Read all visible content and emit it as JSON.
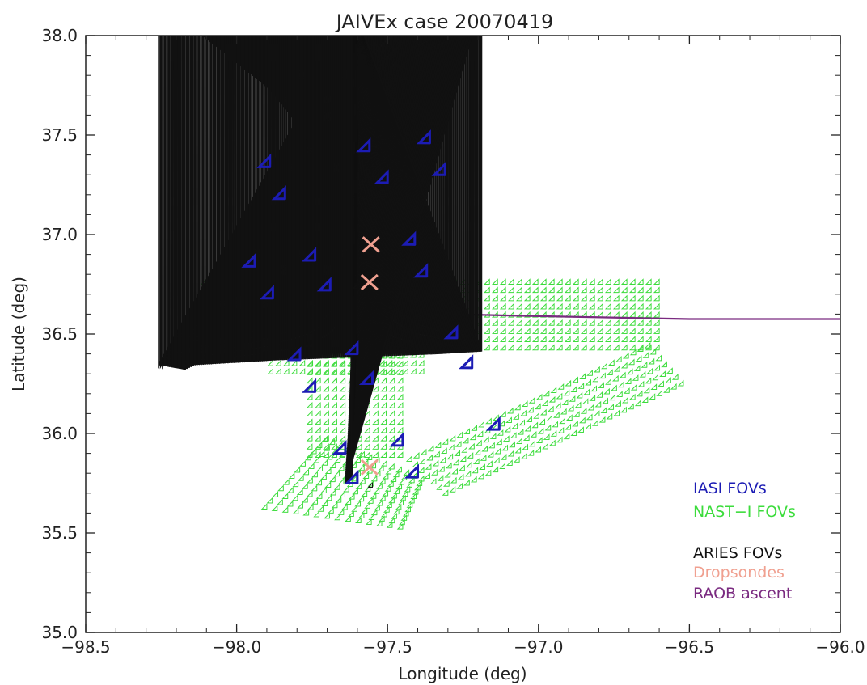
{
  "chart_data": {
    "type": "scatter",
    "title": "JAIVEx case 20070419",
    "xlabel": "Longitude (deg)",
    "ylabel": "Latitude (deg)",
    "xlim": [
      -98.5,
      -96.0
    ],
    "ylim": [
      35.0,
      38.0
    ],
    "x_ticks": [
      -98.5,
      -98.0,
      -97.5,
      -97.0,
      -96.5,
      -96.0
    ],
    "x_tick_labels": [
      "−98.5",
      "−98.0",
      "−97.5",
      "−97.0",
      "−96.5",
      "−96.0"
    ],
    "y_ticks": [
      35.0,
      35.5,
      36.0,
      36.5,
      37.0,
      37.5,
      38.0
    ],
    "y_tick_labels": [
      "35.0",
      "35.5",
      "36.0",
      "36.5",
      "37.0",
      "37.5",
      "38.0"
    ],
    "grid": false,
    "legend_position": "bottom-right",
    "legend": [
      {
        "label": "IASI FOVs",
        "color": "#1c1cb4"
      },
      {
        "label": "NAST−I FOVs",
        "color": "#3cdc3c"
      },
      {
        "label": "ARIES FOVs",
        "color": "#111111"
      },
      {
        "label": "Dropsondes",
        "color": "#f0a090"
      },
      {
        "label": "RAOB ascent",
        "color": "#7a2a80"
      }
    ],
    "series": [
      {
        "name": "IASI FOVs",
        "marker": "diamond",
        "color": "#1c1cb4",
        "points": [
          [
            -97.89,
            37.34
          ],
          [
            -97.84,
            37.18
          ],
          [
            -97.56,
            37.42
          ],
          [
            -97.5,
            37.26
          ],
          [
            -97.36,
            37.46
          ],
          [
            -97.31,
            37.3
          ],
          [
            -97.94,
            36.84
          ],
          [
            -97.88,
            36.68
          ],
          [
            -97.74,
            36.87
          ],
          [
            -97.69,
            36.72
          ],
          [
            -97.41,
            36.95
          ],
          [
            -97.37,
            36.79
          ],
          [
            -97.79,
            36.37
          ],
          [
            -97.74,
            36.21
          ],
          [
            -97.6,
            36.4
          ],
          [
            -97.55,
            36.25
          ],
          [
            -97.27,
            36.48
          ],
          [
            -97.22,
            36.33
          ],
          [
            -97.64,
            35.9
          ],
          [
            -97.6,
            35.75
          ],
          [
            -97.45,
            35.94
          ],
          [
            -97.4,
            35.78
          ],
          [
            -97.13,
            36.02
          ]
        ]
      },
      {
        "name": "NAST−I FOVs",
        "marker": "diamond",
        "color": "#3cdc3c",
        "swaths": [
          {
            "corners": [
              [
                -98.1,
                36.75
              ],
              [
                -96.6,
                36.75
              ],
              [
                -96.6,
                36.42
              ],
              [
                -98.1,
                36.42
              ]
            ]
          },
          {
            "corners": [
              [
                -97.88,
                37.0
              ],
              [
                -97.38,
                37.0
              ],
              [
                -97.38,
                36.3
              ],
              [
                -97.88,
                36.3
              ]
            ]
          },
          {
            "corners": [
              [
                -97.75,
                36.42
              ],
              [
                -97.45,
                36.42
              ],
              [
                -97.45,
                35.88
              ],
              [
                -97.75,
                35.88
              ]
            ]
          },
          {
            "corners": [
              [
                -97.7,
                35.96
              ],
              [
                -97.38,
                35.76
              ],
              [
                -97.45,
                35.52
              ],
              [
                -97.9,
                35.62
              ]
            ]
          },
          {
            "corners": [
              [
                -96.63,
                36.43
              ],
              [
                -96.52,
                36.24
              ],
              [
                -97.3,
                35.69
              ],
              [
                -97.42,
                35.86
              ]
            ]
          }
        ]
      },
      {
        "name": "ARIES FOVs",
        "marker": "diamond",
        "color": "#111111",
        "track": [
          [
            -97.575,
            37.38
          ],
          [
            -97.56,
            37.25
          ],
          [
            -97.575,
            37.2
          ],
          [
            -97.59,
            36.8
          ],
          [
            -97.6,
            36.4
          ],
          [
            -97.61,
            36.0
          ],
          [
            -97.62,
            35.75
          ]
        ],
        "points": [
          [
            -97.6,
            36.73
          ],
          [
            -97.55,
            35.73
          ]
        ]
      },
      {
        "name": "Dropsondes",
        "marker": "x",
        "color": "#f0a090",
        "points": [
          [
            -97.555,
            36.95
          ],
          [
            -97.56,
            36.76
          ],
          [
            -97.56,
            35.83
          ]
        ]
      },
      {
        "name": "RAOB ascent",
        "marker": "line",
        "color": "#7a2a80",
        "start_marker": [
          -97.51,
          36.61
        ],
        "points": [
          [
            -97.51,
            36.61
          ],
          [
            -97.45,
            36.62
          ],
          [
            -97.3,
            36.6
          ],
          [
            -97.0,
            36.59
          ],
          [
            -96.5,
            36.575
          ],
          [
            -96.2,
            36.575
          ],
          [
            -96.0,
            36.575
          ]
        ]
      }
    ]
  }
}
